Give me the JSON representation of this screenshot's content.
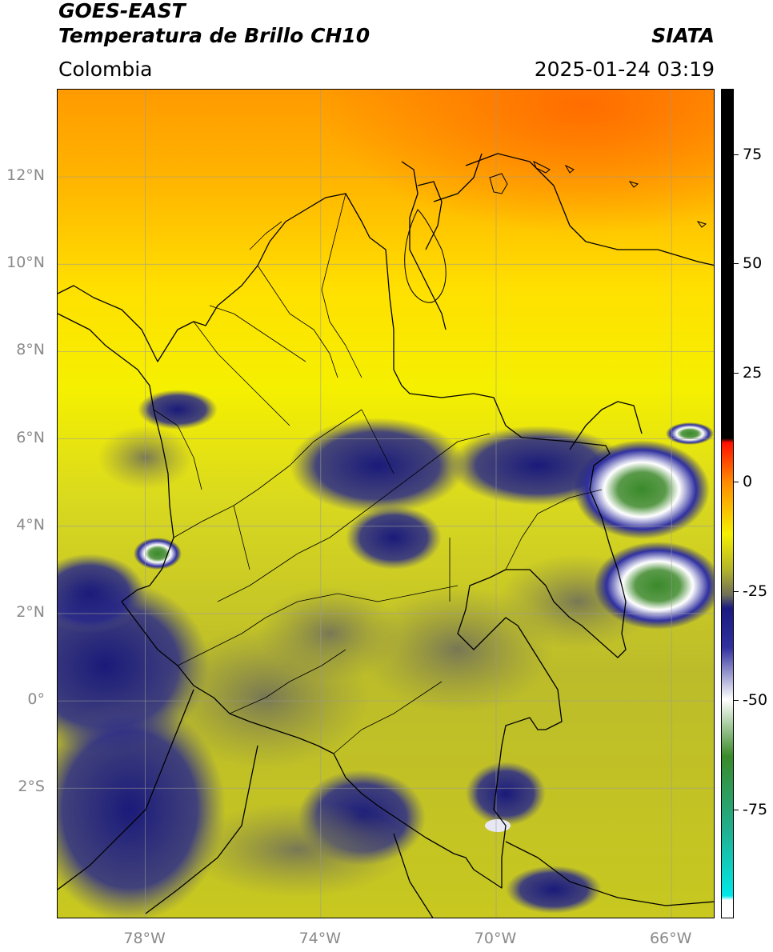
{
  "header": {
    "satellite": "GOES-EAST",
    "product": "Temperatura de Brillo CH10",
    "region": "Colombia",
    "agency": "SIATA",
    "timestamp": "2025-01-24 03:19"
  },
  "map": {
    "lat_ticks": [
      {
        "label": "12°N",
        "value": 12
      },
      {
        "label": "10°N",
        "value": 10
      },
      {
        "label": "8°N",
        "value": 8
      },
      {
        "label": "6°N",
        "value": 6
      },
      {
        "label": "4°N",
        "value": 4
      },
      {
        "label": "2°N",
        "value": 2
      },
      {
        "label": "0°",
        "value": 0
      },
      {
        "label": "2°S",
        "value": -2
      }
    ],
    "lon_ticks": [
      {
        "label": "78°W",
        "value": -78
      },
      {
        "label": "74°W",
        "value": -74
      },
      {
        "label": "70°W",
        "value": -70
      },
      {
        "label": "66°W",
        "value": -66
      }
    ],
    "lon_range": [
      -80,
      -65
    ],
    "lat_range": [
      -5,
      14
    ],
    "grid": true
  },
  "colorbar": {
    "range": [
      -100,
      90
    ],
    "ticks": [
      {
        "label": "75",
        "value": 75
      },
      {
        "label": "50",
        "value": 50
      },
      {
        "label": "25",
        "value": 25
      },
      {
        "label": "0",
        "value": 0
      },
      {
        "label": "-25",
        "value": -25
      },
      {
        "label": "-50",
        "value": -50
      },
      {
        "label": "-75",
        "value": -75
      }
    ],
    "colors": {
      "black": "#000000",
      "red": "#ff1000",
      "orange": "#ff8a00",
      "yellow": "#f5f000",
      "olive": "#b5b52a",
      "gray": "#6f6f5a",
      "navy": "#1a1a80",
      "blue": "#3030a0",
      "white": "#ffffff",
      "green": "#3a8a2a",
      "teal": "#20b090",
      "cyan": "#00e8e8"
    }
  }
}
